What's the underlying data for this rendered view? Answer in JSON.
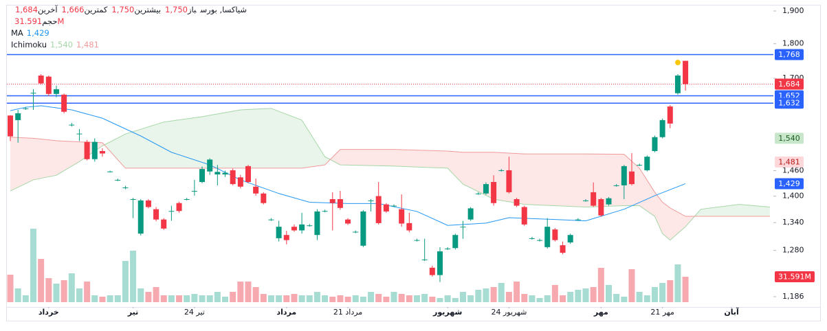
{
  "chart_data": {
    "type": "candlestick",
    "header": {
      "symbol": "شیاکسا, بورس",
      "fields": [
        {
          "name": "باز",
          "value": "1,750"
        },
        {
          "name": "بیشترین",
          "value": "1,750"
        },
        {
          "name": "کمترین",
          "value": "1,666"
        },
        {
          "name": "آخرین",
          "value": "1,684"
        }
      ]
    },
    "volume_name": "حجم",
    "up_color": "#089981",
    "down_color": "#f23645",
    "volume_up_color": "#a6dcd2",
    "volume_down_color": "#f7a9b0",
    "log_scale": true,
    "grid": false,
    "ylim": [
      1186,
      1900
    ],
    "yticks": [
      {
        "value": 1900,
        "label": "1,900"
      },
      {
        "value": 1800,
        "label": "1,800"
      },
      {
        "value": 1700,
        "label": "1,700"
      },
      {
        "value": 1460,
        "label": "1,460"
      },
      {
        "value": 1400,
        "label": "1,400"
      },
      {
        "value": 1340,
        "label": "1,340"
      },
      {
        "value": 1280,
        "label": "1,280"
      },
      {
        "value": 1186,
        "label": "1,186"
      }
    ],
    "xlim": [
      -0.45,
      99.46
    ],
    "xticks": [
      {
        "value": 5,
        "label": "خرداد"
      },
      {
        "value": 16,
        "label": "تیر"
      },
      {
        "value": 24,
        "label": "24 تیر"
      },
      {
        "value": 36,
        "label": "مرداد"
      },
      {
        "value": 44,
        "label": "21 مرداد"
      },
      {
        "value": 57,
        "label": "شهریور"
      },
      {
        "value": 65,
        "label": "24 شهریور"
      },
      {
        "value": 77,
        "label": "مهر"
      },
      {
        "value": 85,
        "label": "21 مهر"
      },
      {
        "value": 94,
        "label": "آبان"
      }
    ],
    "open": [
      1599,
      1587,
      1618,
      1660,
      1708,
      1705,
      1657,
      1655,
      1575,
      1552,
      1531,
      1488,
      1508,
      1458,
      1438,
      1420,
      1393,
      1316,
      1390,
      1370,
      1347,
      1366,
      1384,
      1393,
      1412,
      1433,
      1458,
      1451,
      1451,
      1461,
      1444,
      1471,
      1422,
      1406,
      1347,
      1306,
      1313,
      1331,
      1323,
      1334,
      1313,
      1366,
      1393,
      1393,
      1347,
      1320,
      1290,
      1390,
      1400,
      1381,
      1378,
      1370,
      1339,
      1302,
      1261,
      1244,
      1229,
      1284,
      1285,
      1331,
      1347,
      1406,
      1406,
      1433,
      1461,
      1461,
      1393,
      1375,
      1306,
      1302,
      1287,
      1325,
      1291,
      1297,
      1347,
      1390,
      1409,
      1393,
      1381,
      1425,
      1425,
      1458,
      1474,
      1461,
      1508,
      1543,
      1623,
      1659,
      1750
    ],
    "high": [
      1600,
      1614,
      1622,
      1670,
      1712,
      1708,
      1680,
      1658,
      1580,
      1564,
      1536,
      1540,
      1515,
      1460,
      1441,
      1424,
      1396,
      1393,
      1393,
      1375,
      1350,
      1378,
      1387,
      1396,
      1438,
      1470,
      1490,
      1474,
      1460,
      1465,
      1450,
      1474,
      1441,
      1409,
      1350,
      1344,
      1322,
      1336,
      1362,
      1337,
      1370,
      1369,
      1409,
      1412,
      1350,
      1323,
      1368,
      1393,
      1433,
      1384,
      1381,
      1404,
      1362,
      1305,
      1305,
      1248,
      1287,
      1287,
      1316,
      1344,
      1375,
      1409,
      1432,
      1449,
      1464,
      1494,
      1396,
      1378,
      1309,
      1305,
      1350,
      1328,
      1299,
      1316,
      1350,
      1393,
      1432,
      1396,
      1398,
      1428,
      1474,
      1503,
      1477,
      1497,
      1547,
      1591,
      1627,
      1712,
      1750
    ],
    "low": [
      1533,
      1529,
      1614,
      1614,
      1684,
      1651,
      1648,
      1605,
      1570,
      1533,
      1485,
      1482,
      1494,
      1456,
      1435,
      1416,
      1350,
      1312,
      1372,
      1343,
      1324,
      1344,
      1362,
      1390,
      1401,
      1430,
      1450,
      1425,
      1445,
      1425,
      1418,
      1430,
      1401,
      1381,
      1344,
      1299,
      1293,
      1320,
      1316,
      1331,
      1302,
      1363,
      1323,
      1369,
      1335,
      1317,
      1287,
      1365,
      1336,
      1362,
      1375,
      1331,
      1319,
      1299,
      1258,
      1226,
      1215,
      1281,
      1282,
      1305,
      1344,
      1403,
      1403,
      1378,
      1458,
      1406,
      1375,
      1333,
      1303,
      1299,
      1284,
      1299,
      1272,
      1294,
      1344,
      1387,
      1375,
      1353,
      1378,
      1422,
      1393,
      1425,
      1471,
      1458,
      1505,
      1540,
      1566,
      1655,
      1666
    ],
    "close": [
      1545,
      1605,
      1618,
      1660,
      1686,
      1657,
      1670,
      1609,
      1575,
      1552,
      1488,
      1531,
      1502,
      1458,
      1438,
      1420,
      1393,
      1390,
      1375,
      1347,
      1327,
      1366,
      1366,
      1393,
      1412,
      1464,
      1487,
      1457,
      1455,
      1428,
      1422,
      1433,
      1406,
      1384,
      1347,
      1331,
      1302,
      1323,
      1336,
      1334,
      1365,
      1366,
      1384,
      1373,
      1338,
      1320,
      1365,
      1390,
      1339,
      1365,
      1378,
      1338,
      1323,
      1302,
      1261,
      1229,
      1278,
      1284,
      1313,
      1331,
      1372,
      1406,
      1428,
      1384,
      1461,
      1409,
      1378,
      1336,
      1306,
      1302,
      1331,
      1302,
      1275,
      1313,
      1347,
      1390,
      1378,
      1356,
      1395,
      1425,
      1471,
      1428,
      1474,
      1494,
      1543,
      1587,
      1578,
      1708,
      1684
    ],
    "volume": [
      34160000,
      17080000,
      8540000,
      91378000,
      53802000,
      29890000,
      23058000,
      27328000,
      35868000,
      17080000,
      25620000,
      8540000,
      6832000,
      8540000,
      8540000,
      51240000,
      64050000,
      17080000,
      12810000,
      18788000,
      8540000,
      8540000,
      8540000,
      8540000,
      10248000,
      8540000,
      8540000,
      12810000,
      6832000,
      12810000,
      25620000,
      25620000,
      18788000,
      10248000,
      8540000,
      8540000,
      8540000,
      10248000,
      8540000,
      8540000,
      12810000,
      8540000,
      6832000,
      8540000,
      6832000,
      8540000,
      6832000,
      12810000,
      10248000,
      6832000,
      12810000,
      10248000,
      8540000,
      8540000,
      10248000,
      6832000,
      5124000,
      8540000,
      5124000,
      12810000,
      8540000,
      15372000,
      17080000,
      18788000,
      23912000,
      12810000,
      25620000,
      10248000,
      8540000,
      5124000,
      8540000,
      21350000,
      8540000,
      12810000,
      15372000,
      17080000,
      18788000,
      42700000,
      21350000,
      10248000,
      6832000,
      40992000,
      12810000,
      8540000,
      18788000,
      23912000,
      27328000,
      46970000,
      31591000
    ],
    "volume_badge": {
      "value": 31591000,
      "label": "31.591M",
      "bg": "#f23645",
      "fg": "#ffffff"
    },
    "ma": {
      "name": "MA",
      "color": "#2196f3",
      "x": [
        0,
        2,
        4,
        8,
        12,
        17,
        21,
        26,
        30,
        35,
        39,
        44,
        48,
        53,
        57,
        62,
        65,
        71,
        75,
        80,
        84,
        88
      ],
      "values": [
        1612,
        1621,
        1625,
        1614,
        1592,
        1546,
        1505,
        1474,
        1438,
        1406,
        1386,
        1383,
        1383,
        1365,
        1334,
        1339,
        1351,
        1347,
        1344,
        1370,
        1401,
        1429
      ]
    },
    "ichimoku": {
      "name": "Ichimoku",
      "span_a_color": "#a5d6a7",
      "span_b_color": "#ef9a9a",
      "x": [
        0,
        3,
        6,
        9,
        12,
        15,
        20,
        25,
        30,
        34,
        38,
        41,
        43,
        50,
        57,
        59,
        63,
        67,
        75,
        80,
        82,
        84,
        85,
        86,
        88,
        90,
        95,
        99
      ],
      "span_a": [
        1412,
        1438,
        1449,
        1482,
        1521,
        1551,
        1582,
        1596,
        1614,
        1618,
        1587,
        1494,
        1474,
        1471,
        1466,
        1428,
        1393,
        1381,
        1375,
        1378,
        1378,
        1354,
        1316,
        1302,
        1331,
        1370,
        1381,
        1375
      ],
      "span_b": [
        1543,
        1540,
        1534,
        1531,
        1529,
        1466,
        1466,
        1466,
        1466,
        1466,
        1466,
        1474,
        1512,
        1512,
        1508,
        1505,
        1505,
        1501,
        1501,
        1500,
        1466,
        1409,
        1386,
        1373,
        1354,
        1354,
        1354,
        1354
      ]
    },
    "price_labels": [
      {
        "value": 1768,
        "label": "1,768",
        "bg": "#2962ff",
        "fg": "#ffffff",
        "line": "solid"
      },
      {
        "value": 1684,
        "label": "1,684",
        "bg": "#f23645",
        "fg": "#ffffff",
        "line": "dotted"
      },
      {
        "value": 1652,
        "label": "1,652",
        "bg": "#2962ff",
        "fg": "#ffffff",
        "line": "solid"
      },
      {
        "value": 1632,
        "label": "1,632",
        "bg": "#2962ff",
        "fg": "#ffffff",
        "line": "solid"
      },
      {
        "value": 1540,
        "label": "1,540",
        "bg": "#c8e6c9",
        "fg": "#1b5e20"
      },
      {
        "value": 1481,
        "label": "1,481",
        "bg": "#fdd7d9",
        "fg": "#b71c1c"
      },
      {
        "value": 1429,
        "label": "1,429",
        "bg": "#2962ff",
        "fg": "#ffffff"
      }
    ]
  }
}
